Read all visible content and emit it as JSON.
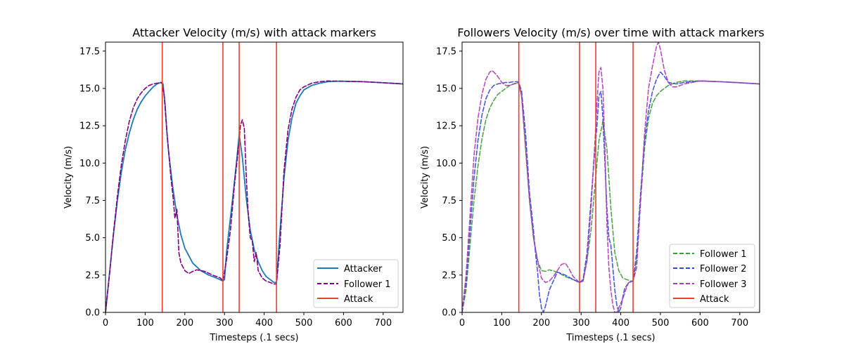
{
  "colors": {
    "attacker": "#1f77b4",
    "follower1_left": "#800080",
    "attack": "#e8402f",
    "follower1": "#3d9a3d",
    "follower2": "#3545e0",
    "follower3": "#ad3cb4"
  },
  "chart_data": [
    {
      "type": "line",
      "title": "Attacker Velocity (m/s) with attack markers",
      "xlabel": "Timesteps (.1 secs)",
      "ylabel": "Velocity (m/s)",
      "xlim": [
        0,
        750
      ],
      "ylim": [
        0,
        18.1
      ],
      "xticks": [
        0,
        100,
        200,
        300,
        400,
        500,
        600,
        700
      ],
      "yticks": [
        0.0,
        2.5,
        5.0,
        7.5,
        10.0,
        12.5,
        15.0,
        17.5
      ],
      "grid": false,
      "legend_position": "lower-right",
      "attack_markers": [
        143,
        296,
        337,
        431
      ],
      "series": [
        {
          "name": "Attacker",
          "style": "solid",
          "color": "#1f77b4",
          "x": [
            0,
            10,
            20,
            30,
            40,
            50,
            60,
            70,
            80,
            90,
            100,
            110,
            120,
            130,
            140,
            145,
            150,
            155,
            160,
            170,
            180,
            190,
            200,
            220,
            240,
            260,
            280,
            296,
            300,
            305,
            310,
            320,
            330,
            337,
            345,
            355,
            365,
            375,
            385,
            395,
            405,
            415,
            425,
            431,
            440,
            450,
            460,
            470,
            480,
            490,
            500,
            520,
            540,
            560,
            580,
            600,
            650,
            700,
            750
          ],
          "y": [
            0.0,
            2.6,
            5.2,
            7.5,
            9.4,
            10.9,
            12.0,
            12.9,
            13.6,
            14.1,
            14.5,
            14.8,
            15.1,
            15.3,
            15.4,
            15.3,
            14.0,
            12.0,
            10.5,
            8.3,
            6.5,
            5.2,
            4.3,
            3.3,
            2.8,
            2.5,
            2.3,
            2.1,
            2.2,
            4.0,
            5.2,
            7.5,
            10.0,
            11.9,
            10.4,
            7.6,
            5.5,
            4.2,
            3.4,
            2.8,
            2.4,
            2.2,
            2.0,
            2.0,
            5.5,
            9.0,
            11.5,
            13.0,
            14.0,
            14.5,
            14.9,
            15.2,
            15.35,
            15.45,
            15.48,
            15.48,
            15.45,
            15.38,
            15.3
          ]
        },
        {
          "name": "Follower 1",
          "style": "dashed",
          "color": "#800080",
          "x": [
            0,
            10,
            20,
            30,
            40,
            50,
            60,
            70,
            80,
            90,
            100,
            110,
            120,
            130,
            140,
            143,
            148,
            155,
            160,
            165,
            170,
            175,
            180,
            185,
            190,
            200,
            210,
            220,
            230,
            250,
            270,
            290,
            296,
            305,
            315,
            325,
            335,
            340,
            345,
            350,
            355,
            360,
            365,
            370,
            375,
            380,
            385,
            395,
            405,
            415,
            425,
            431,
            440,
            450,
            460,
            470,
            480,
            490,
            500,
            520,
            540,
            560,
            600,
            650,
            700,
            750
          ],
          "y": [
            0.0,
            2.5,
            5.3,
            7.8,
            9.9,
            11.5,
            12.8,
            13.7,
            14.3,
            14.7,
            15.0,
            15.2,
            15.3,
            15.35,
            15.4,
            15.3,
            14.5,
            12.0,
            10.5,
            9.0,
            7.8,
            6.3,
            6.9,
            4.0,
            3.3,
            2.8,
            2.6,
            2.75,
            2.85,
            2.75,
            2.5,
            2.3,
            2.1,
            3.5,
            5.5,
            8.5,
            11.0,
            12.5,
            12.9,
            12.3,
            9.0,
            6.5,
            5.0,
            4.8,
            3.4,
            4.0,
            2.8,
            2.3,
            2.1,
            2.0,
            1.9,
            1.9,
            4.5,
            9.5,
            12.2,
            13.6,
            14.4,
            14.9,
            15.1,
            15.35,
            15.45,
            15.5,
            15.48,
            15.45,
            15.38,
            15.3
          ]
        }
      ],
      "legend": [
        {
          "label": "Attacker",
          "style": "solid",
          "color": "#1f77b4"
        },
        {
          "label": "Follower 1",
          "style": "dashed",
          "color": "#800080"
        },
        {
          "label": "Attack",
          "style": "solid",
          "color": "#e8402f"
        }
      ]
    },
    {
      "type": "line",
      "title": "Followers Velocity (m/s) over time with attack markers",
      "xlabel": "Timesteps (.1 secs)",
      "ylabel": "Velocity (m/s)",
      "xlim": [
        0,
        750
      ],
      "ylim": [
        0,
        18.1
      ],
      "xticks": [
        0,
        100,
        200,
        300,
        400,
        500,
        600,
        700
      ],
      "yticks": [
        0.0,
        2.5,
        5.0,
        7.5,
        10.0,
        12.5,
        15.0,
        17.5
      ],
      "grid": false,
      "legend_position": "lower-right",
      "attack_markers": [
        143,
        296,
        337,
        431
      ],
      "series": [
        {
          "name": "Follower 1",
          "style": "dashed",
          "color": "#3d9a3d",
          "x": [
            0,
            10,
            20,
            30,
            40,
            50,
            60,
            70,
            80,
            90,
            100,
            110,
            120,
            130,
            140,
            143,
            150,
            160,
            170,
            180,
            190,
            200,
            210,
            220,
            240,
            260,
            280,
            296,
            305,
            315,
            325,
            335,
            345,
            355,
            365,
            375,
            385,
            395,
            405,
            415,
            425,
            431,
            440,
            450,
            460,
            470,
            480,
            490,
            500,
            520,
            540,
            560,
            600,
            650,
            700,
            750
          ],
          "y": [
            0.0,
            1.5,
            4.5,
            7.5,
            9.8,
            11.6,
            12.9,
            13.7,
            14.2,
            14.6,
            14.8,
            15.0,
            15.2,
            15.3,
            15.35,
            15.3,
            14.5,
            11.0,
            7.5,
            5.0,
            3.5,
            2.8,
            2.75,
            2.85,
            2.7,
            2.4,
            2.2,
            2.0,
            2.1,
            3.5,
            5.5,
            8.5,
            11.5,
            12.8,
            11.0,
            7.0,
            4.0,
            2.8,
            2.3,
            2.2,
            2.1,
            2.1,
            3.5,
            7.5,
            11.0,
            13.0,
            14.0,
            14.5,
            14.8,
            15.2,
            15.4,
            15.5,
            15.5,
            15.45,
            15.38,
            15.3
          ]
        },
        {
          "name": "Follower 2",
          "style": "dashed",
          "color": "#3545e0",
          "x": [
            0,
            10,
            20,
            30,
            40,
            50,
            60,
            70,
            80,
            90,
            100,
            110,
            120,
            130,
            140,
            143,
            150,
            160,
            170,
            180,
            185,
            190,
            195,
            200,
            205,
            210,
            220,
            240,
            260,
            280,
            296,
            305,
            315,
            325,
            335,
            340,
            345,
            350,
            355,
            360,
            365,
            370,
            375,
            380,
            385,
            390,
            395,
            400,
            405,
            410,
            420,
            431,
            440,
            450,
            460,
            470,
            480,
            490,
            500,
            510,
            520,
            540,
            560,
            600,
            650,
            700,
            750
          ],
          "y": [
            0.0,
            2.0,
            5.5,
            9.0,
            11.5,
            13.2,
            14.3,
            14.9,
            15.2,
            15.3,
            15.35,
            15.4,
            15.4,
            15.45,
            15.45,
            15.4,
            14.8,
            12.0,
            8.0,
            5.5,
            4.0,
            2.8,
            1.2,
            0.3,
            0.0,
            0.4,
            1.5,
            2.7,
            2.5,
            2.2,
            2.0,
            2.2,
            4.0,
            7.5,
            11.0,
            12.5,
            14.5,
            14.8,
            13.0,
            10.0,
            7.0,
            5.0,
            4.5,
            3.0,
            1.5,
            0.5,
            0.0,
            0.3,
            1.0,
            1.6,
            2.0,
            2.1,
            4.0,
            8.0,
            11.5,
            13.5,
            14.8,
            15.6,
            16.1,
            15.8,
            15.4,
            15.3,
            15.4,
            15.5,
            15.45,
            15.38,
            15.3
          ]
        },
        {
          "name": "Follower 3",
          "style": "dashed",
          "color": "#ad3cb4",
          "x": [
            0,
            10,
            20,
            30,
            40,
            50,
            60,
            70,
            75,
            80,
            90,
            100,
            110,
            120,
            130,
            140,
            143,
            150,
            160,
            170,
            180,
            190,
            200,
            210,
            220,
            230,
            240,
            250,
            260,
            270,
            280,
            296,
            305,
            315,
            325,
            335,
            340,
            345,
            350,
            355,
            360,
            365,
            370,
            375,
            380,
            385,
            390,
            395,
            400,
            405,
            410,
            415,
            420,
            431,
            440,
            450,
            460,
            470,
            480,
            490,
            495,
            500,
            510,
            520,
            530,
            540,
            560,
            600,
            650,
            700,
            750
          ],
          "y": [
            0.0,
            2.5,
            6.5,
            10.5,
            13.0,
            14.6,
            15.6,
            16.1,
            16.2,
            16.1,
            15.8,
            15.4,
            15.2,
            15.2,
            15.3,
            15.4,
            15.3,
            14.5,
            11.0,
            7.5,
            5.0,
            3.5,
            2.3,
            2.0,
            2.1,
            2.4,
            2.8,
            3.2,
            3.3,
            2.9,
            2.4,
            2.0,
            2.1,
            3.5,
            7.0,
            11.5,
            14.0,
            16.1,
            16.4,
            15.0,
            11.0,
            6.0,
            3.0,
            1.5,
            0.5,
            0.0,
            0.0,
            0.3,
            0.6,
            0.9,
            1.3,
            1.7,
            2.0,
            2.1,
            3.0,
            7.5,
            12.0,
            15.0,
            16.5,
            17.8,
            18.1,
            17.6,
            16.2,
            15.4,
            15.1,
            15.1,
            15.3,
            15.5,
            15.45,
            15.38,
            15.3
          ]
        }
      ],
      "legend": [
        {
          "label": "Follower 1",
          "style": "dashed",
          "color": "#3d9a3d"
        },
        {
          "label": "Follower 2",
          "style": "dashed",
          "color": "#3545e0"
        },
        {
          "label": "Follower 3",
          "style": "dashed",
          "color": "#ad3cb4"
        },
        {
          "label": "Attack",
          "style": "solid",
          "color": "#e8402f"
        }
      ]
    }
  ]
}
